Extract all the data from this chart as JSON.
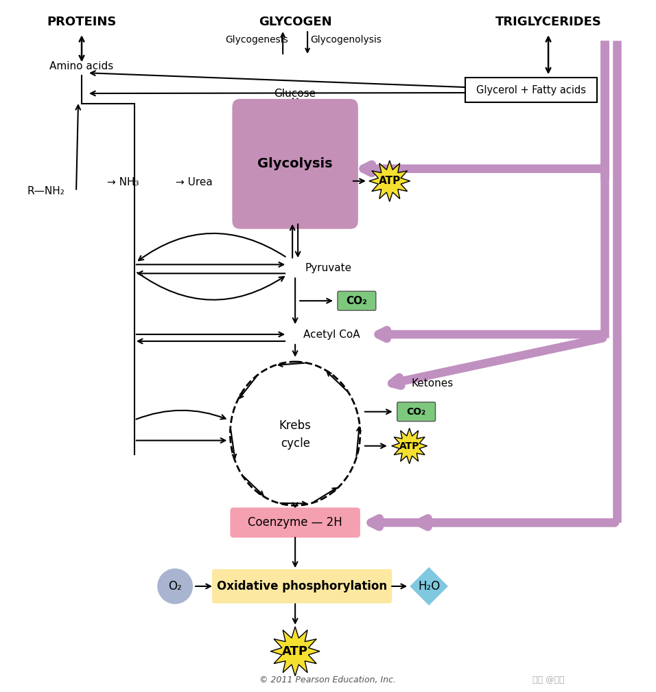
{
  "bg_color": "#ffffff",
  "title_proteins": "PROTEINS",
  "title_glycogen": "GLYCOGEN",
  "title_triglycerides": "TRIGLYCERIDES",
  "glycolysis_box_color": "#c490b8",
  "glycolysis_text": "Glycolysis",
  "coenzyme_box_color": "#f4a0b0",
  "ox_phos_box_color": "#fce8a0",
  "co2_box_color": "#7dc87d",
  "atp_star_color": "#f5e030",
  "o2_circle_color": "#a8b4d0",
  "h2o_diamond_color": "#80c8e0",
  "fat_line_color": "#c090c0",
  "copyright": "© 2011 Pearson Education, Inc."
}
